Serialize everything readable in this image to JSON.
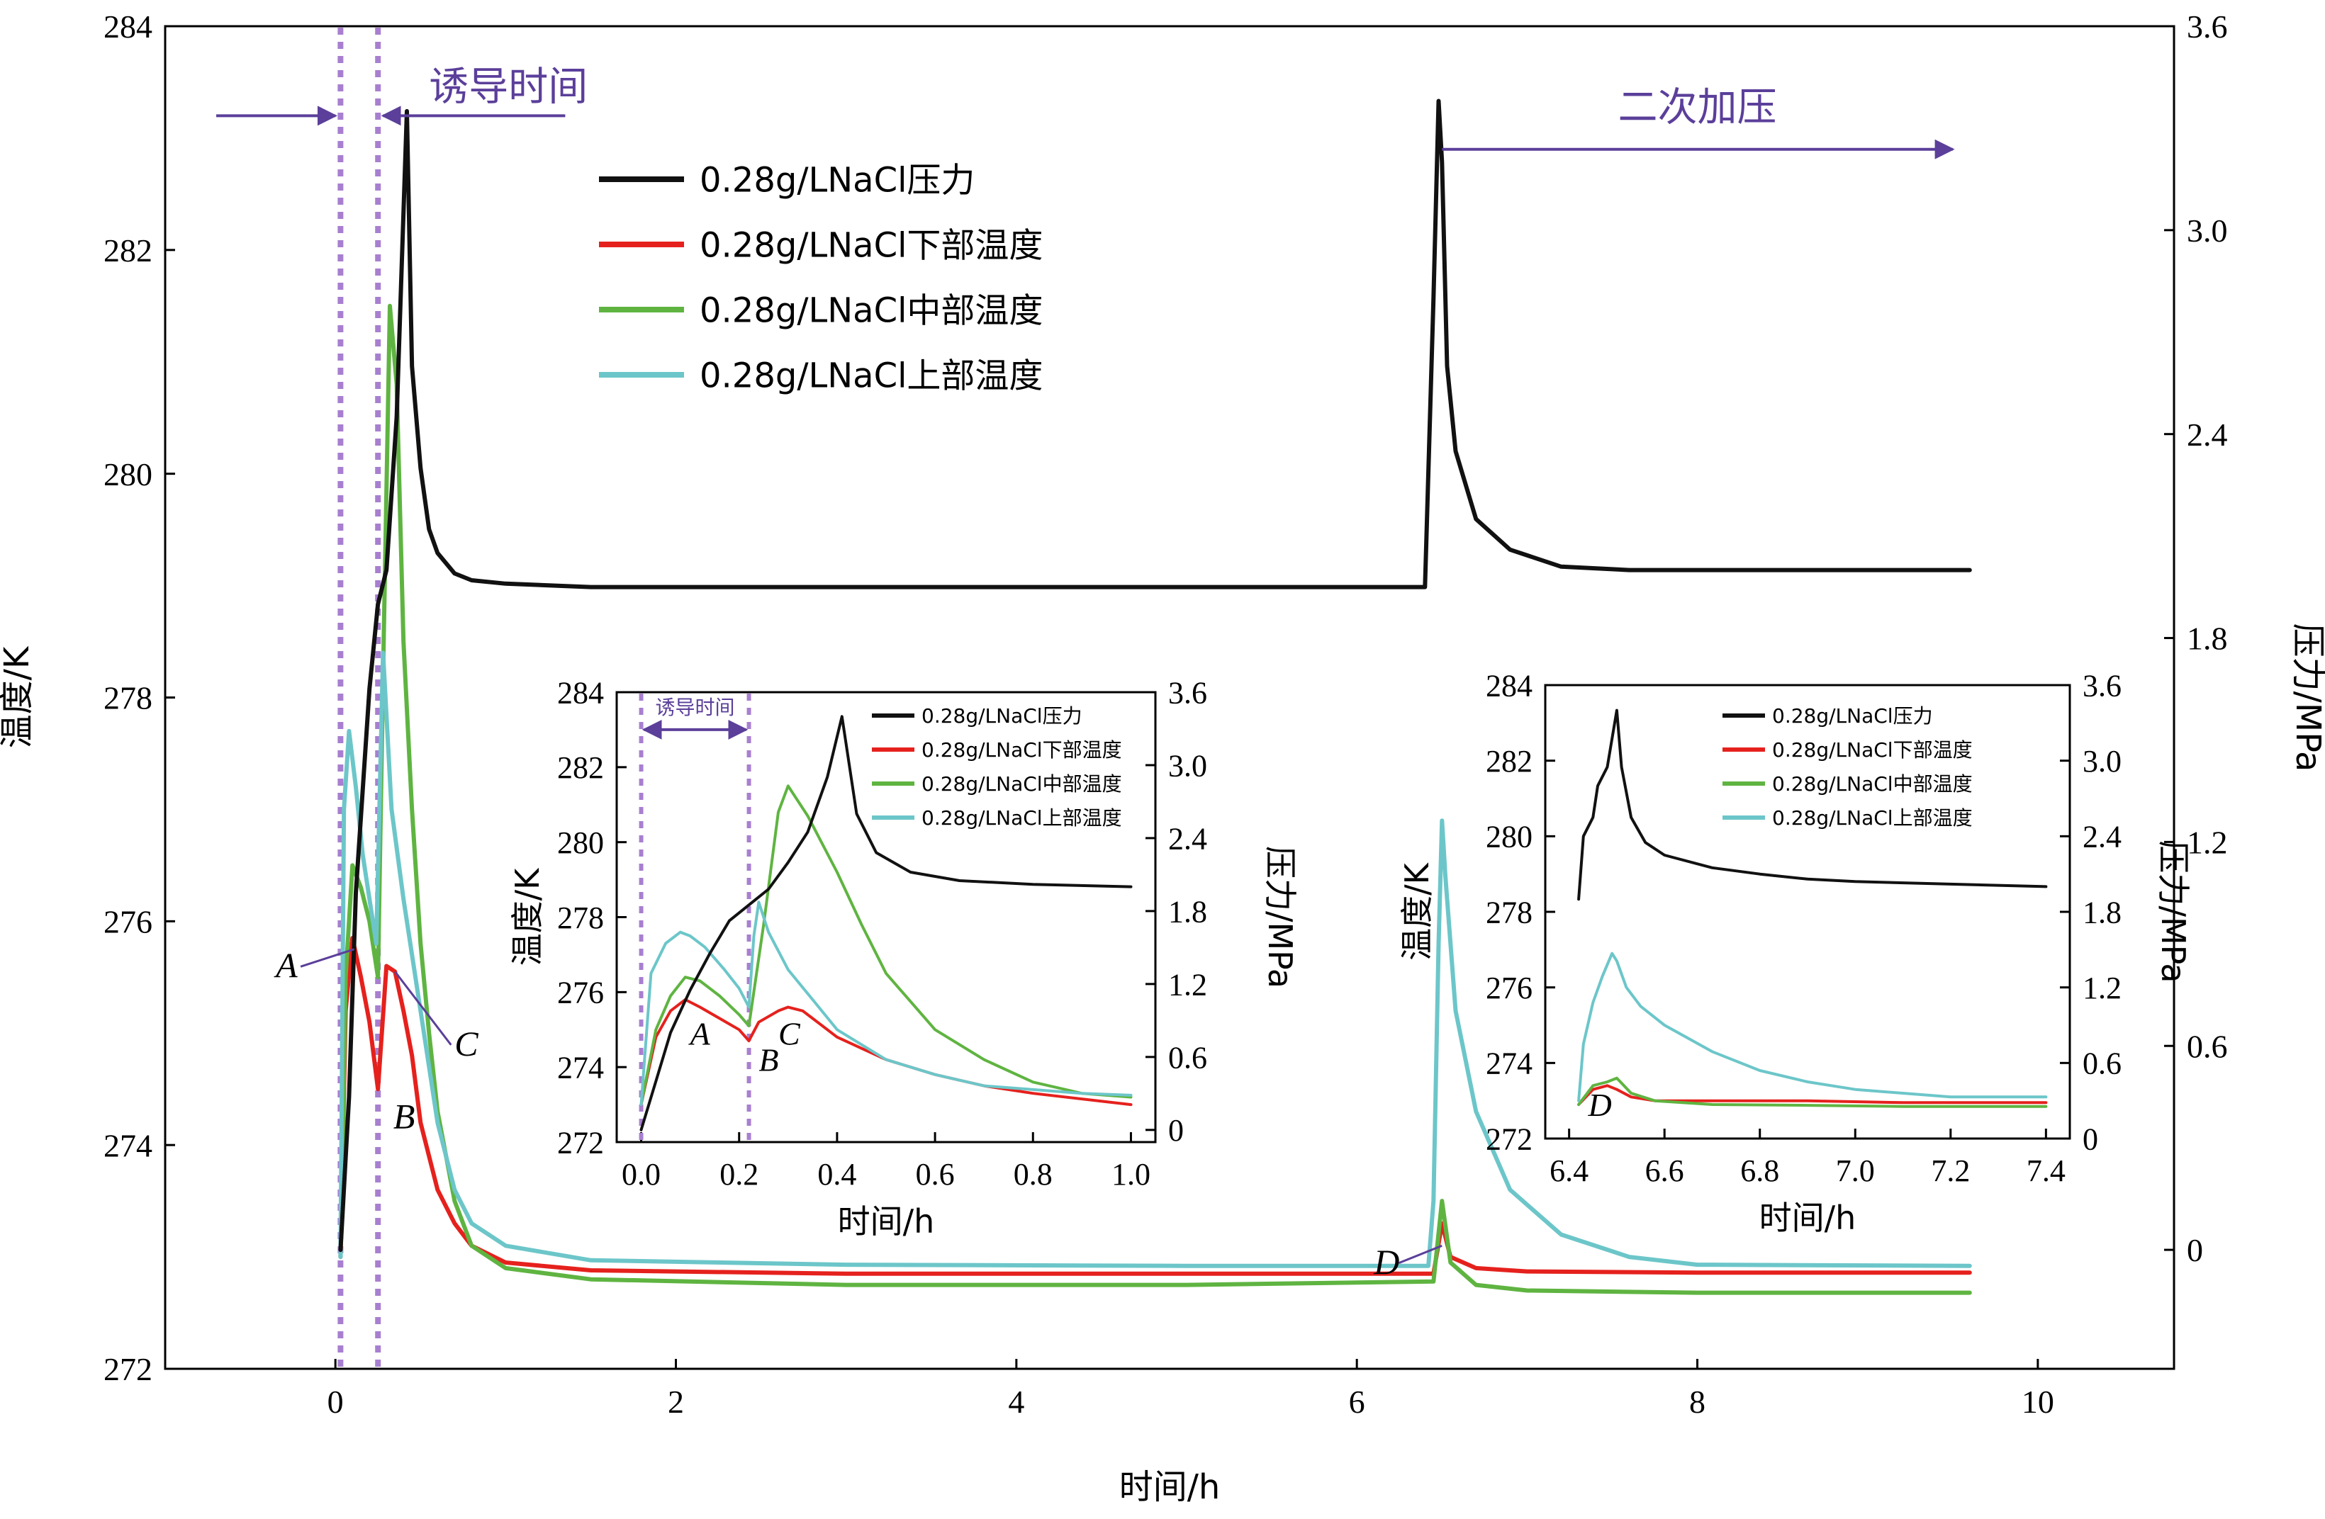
{
  "chart_data": [
    {
      "id": "main",
      "type": "line",
      "xlabel": "时间/h",
      "ylabel_left": "温度/K",
      "ylabel_right": "压力/MPa",
      "xlim": [
        -1,
        10.8
      ],
      "ylim_left": [
        272,
        284
      ],
      "ylim_right": [
        -0.35,
        3.6
      ],
      "x_ticks": [
        0,
        2,
        4,
        6,
        8,
        10
      ],
      "y_left_ticks": [
        272,
        274,
        276,
        278,
        280,
        282,
        284
      ],
      "y_right_ticks": [
        0,
        0.6,
        1.2,
        1.8,
        2.4,
        3.0,
        3.6
      ],
      "y_right_tick_labels": [
        "0",
        "0.6",
        "1.2",
        "1.8",
        "2.4",
        "3.0",
        "3.6"
      ],
      "legend_position": "top-center",
      "vlines": [
        0.03,
        0.25
      ],
      "annotations": [
        {
          "text": "诱导时间",
          "type": "double-arrow",
          "x_from": -0.7,
          "x_to": 1.35,
          "x_mid": 0.14,
          "y": 283.2
        },
        {
          "text": "二次加压",
          "type": "arrow",
          "x_from": 6.5,
          "x_to": 9.5,
          "y": 282.9
        },
        {
          "text": "A",
          "x": -0.35,
          "y": 275.5,
          "to_x": 0.11,
          "to_y": 275.75
        },
        {
          "text": "B",
          "x": 0.34,
          "y": 274.15
        },
        {
          "text": "C",
          "x": 0.7,
          "y": 274.8,
          "to_x": 0.35,
          "to_y": 275.55
        },
        {
          "text": "D",
          "x": 6.1,
          "y": 272.85,
          "to_x": 6.5,
          "to_y": 273.1
        }
      ],
      "series": [
        {
          "name": "0.28g/LNaCl压力",
          "axis": "right",
          "color": "#111111",
          "x": [
            0.03,
            0.08,
            0.12,
            0.2,
            0.25,
            0.3,
            0.36,
            0.42,
            0.45,
            0.5,
            0.55,
            0.6,
            0.7,
            0.8,
            1.0,
            1.5,
            2.5,
            3.5,
            4.5,
            5.5,
            6.4,
            6.45,
            6.48,
            6.5,
            6.53,
            6.58,
            6.7,
            6.9,
            7.2,
            7.6,
            8.5,
            9.6
          ],
          "values": [
            0.0,
            0.45,
            1.05,
            1.65,
            1.9,
            2.0,
            2.45,
            3.35,
            2.6,
            2.3,
            2.12,
            2.05,
            1.99,
            1.97,
            1.96,
            1.95,
            1.95,
            1.95,
            1.95,
            1.95,
            1.95,
            2.8,
            3.38,
            3.2,
            2.6,
            2.35,
            2.15,
            2.06,
            2.01,
            2.0,
            2.0,
            2.0
          ]
        },
        {
          "name": "0.28g/LNaCl下部温度",
          "axis": "left",
          "color": "#e5211d",
          "x": [
            0.03,
            0.06,
            0.1,
            0.15,
            0.2,
            0.25,
            0.3,
            0.35,
            0.4,
            0.45,
            0.5,
            0.6,
            0.7,
            0.8,
            1.0,
            1.5,
            3.0,
            5.0,
            6.45,
            6.5,
            6.55,
            6.7,
            7.0,
            8.0,
            9.6
          ],
          "values": [
            273.0,
            275.2,
            275.85,
            275.5,
            275.1,
            274.5,
            275.6,
            275.55,
            275.2,
            274.8,
            274.2,
            273.6,
            273.3,
            273.1,
            272.95,
            272.88,
            272.85,
            272.85,
            272.85,
            273.3,
            273.0,
            272.9,
            272.87,
            272.86,
            272.86
          ]
        },
        {
          "name": "0.28g/LNaCl中部温度",
          "axis": "left",
          "color": "#5fb441",
          "x": [
            0.03,
            0.06,
            0.1,
            0.15,
            0.2,
            0.25,
            0.28,
            0.32,
            0.36,
            0.4,
            0.45,
            0.5,
            0.55,
            0.6,
            0.7,
            0.8,
            1.0,
            1.5,
            3.0,
            5.0,
            6.45,
            6.5,
            6.55,
            6.7,
            7.0,
            8.0,
            9.6
          ],
          "values": [
            273.0,
            275.5,
            276.5,
            276.3,
            276.0,
            275.5,
            278.2,
            281.5,
            280.8,
            278.5,
            277.0,
            275.8,
            275.0,
            274.3,
            273.5,
            273.1,
            272.9,
            272.8,
            272.75,
            272.75,
            272.78,
            273.5,
            272.95,
            272.75,
            272.7,
            272.68,
            272.68
          ]
        },
        {
          "name": "0.28g/LNaCl上部温度",
          "axis": "left",
          "color": "#6cc6c9",
          "x": [
            0.03,
            0.05,
            0.08,
            0.12,
            0.16,
            0.2,
            0.24,
            0.28,
            0.33,
            0.4,
            0.5,
            0.6,
            0.7,
            0.8,
            1.0,
            1.5,
            3.0,
            5.0,
            6.42,
            6.45,
            6.48,
            6.5,
            6.52,
            6.58,
            6.7,
            6.9,
            7.2,
            7.6,
            8.0,
            9.6
          ],
          "values": [
            273.0,
            277.0,
            277.7,
            277.2,
            276.6,
            276.2,
            275.8,
            278.4,
            277.0,
            276.2,
            275.2,
            274.2,
            273.6,
            273.3,
            273.1,
            272.97,
            272.93,
            272.92,
            272.92,
            273.5,
            275.8,
            276.9,
            276.4,
            275.2,
            274.3,
            273.6,
            273.2,
            273.0,
            272.93,
            272.92
          ]
        }
      ]
    },
    {
      "id": "inset1",
      "type": "line",
      "xlabel": "时间/h",
      "ylabel_left": "温度/K",
      "ylabel_right": "压力/MPa",
      "xlim": [
        -0.05,
        1.05
      ],
      "ylim_left": [
        272,
        284
      ],
      "ylim_right": [
        -0.1,
        3.6
      ],
      "x_ticks": [
        0.0,
        0.2,
        0.4,
        0.6,
        0.8,
        1.0
      ],
      "x_tick_labels": [
        "0.0",
        "0.2",
        "0.4",
        "0.6",
        "0.8",
        "1.0"
      ],
      "y_left_ticks": [
        272,
        274,
        276,
        278,
        280,
        282,
        284
      ],
      "y_right_ticks": [
        0,
        0.6,
        1.2,
        1.8,
        2.4,
        3.0,
        3.6
      ],
      "y_right_tick_labels": [
        "0",
        "0.6",
        "1.2",
        "1.8",
        "2.4",
        "3.0",
        "3.6"
      ],
      "legend_position": "top-right",
      "vlines": [
        0.0,
        0.22
      ],
      "annotations": [
        {
          "text": "诱导时间",
          "type": "double-arrow",
          "x_from": 0.0,
          "x_to": 0.22,
          "y": 283.0
        },
        {
          "text": "A",
          "x": 0.1,
          "y": 274.6
        },
        {
          "text": "B",
          "x": 0.24,
          "y": 273.9
        },
        {
          "text": "C",
          "x": 0.28,
          "y": 274.6
        }
      ],
      "series": [
        {
          "name": "0.28g/LNaCl压力",
          "axis": "right",
          "color": "#111111",
          "x": [
            0.0,
            0.03,
            0.06,
            0.1,
            0.14,
            0.18,
            0.22,
            0.26,
            0.3,
            0.34,
            0.38,
            0.41,
            0.44,
            0.48,
            0.55,
            0.65,
            0.8,
            1.0
          ],
          "values": [
            0.0,
            0.4,
            0.8,
            1.15,
            1.45,
            1.72,
            1.85,
            1.98,
            2.2,
            2.45,
            2.9,
            3.4,
            2.6,
            2.28,
            2.12,
            2.05,
            2.02,
            2.0
          ]
        },
        {
          "name": "0.28g/LNaCl下部温度",
          "axis": "left",
          "color": "#e5211d",
          "x": [
            0.0,
            0.03,
            0.06,
            0.09,
            0.12,
            0.16,
            0.2,
            0.22,
            0.24,
            0.28,
            0.3,
            0.33,
            0.36,
            0.4,
            0.5,
            0.6,
            0.7,
            0.8,
            1.0
          ],
          "values": [
            273.0,
            274.8,
            275.5,
            275.8,
            275.6,
            275.3,
            275.0,
            274.7,
            275.2,
            275.5,
            275.6,
            275.5,
            275.2,
            274.8,
            274.2,
            273.8,
            273.5,
            273.3,
            273.0
          ]
        },
        {
          "name": "0.28g/LNaCl中部温度",
          "axis": "left",
          "color": "#5fb441",
          "x": [
            0.0,
            0.03,
            0.06,
            0.09,
            0.12,
            0.16,
            0.2,
            0.22,
            0.25,
            0.28,
            0.3,
            0.34,
            0.4,
            0.45,
            0.5,
            0.6,
            0.7,
            0.8,
            0.9,
            1.0
          ],
          "values": [
            273.0,
            275.0,
            275.9,
            276.4,
            276.3,
            275.9,
            275.4,
            275.1,
            277.8,
            280.8,
            281.5,
            280.7,
            279.2,
            277.8,
            276.5,
            275.0,
            274.2,
            273.6,
            273.3,
            273.2
          ]
        },
        {
          "name": "0.28g/LNaCl上部温度",
          "axis": "left",
          "color": "#6cc6c9",
          "x": [
            0.0,
            0.02,
            0.05,
            0.08,
            0.1,
            0.13,
            0.17,
            0.2,
            0.22,
            0.23,
            0.24,
            0.26,
            0.3,
            0.35,
            0.4,
            0.5,
            0.6,
            0.7,
            0.8,
            0.9,
            1.0
          ],
          "values": [
            273.0,
            276.5,
            277.3,
            277.6,
            277.5,
            277.2,
            276.6,
            276.1,
            275.6,
            277.5,
            278.4,
            277.6,
            276.6,
            275.8,
            275.0,
            274.2,
            273.8,
            273.5,
            273.4,
            273.3,
            273.25
          ]
        }
      ]
    },
    {
      "id": "inset2",
      "type": "line",
      "xlabel": "时间/h",
      "ylabel_left": "温度/K",
      "ylabel_right": "压力/MPa",
      "xlim": [
        6.35,
        7.45
      ],
      "ylim_left": [
        272,
        284
      ],
      "ylim_right": [
        0,
        3.6
      ],
      "x_ticks": [
        6.4,
        6.6,
        6.8,
        7.0,
        7.2,
        7.4
      ],
      "x_tick_labels": [
        "6.4",
        "6.6",
        "6.8",
        "7.0",
        "7.2",
        "7.4"
      ],
      "y_left_ticks": [
        272,
        274,
        276,
        278,
        280,
        282,
        284
      ],
      "y_right_ticks": [
        0,
        0.6,
        1.2,
        1.8,
        2.4,
        3.0,
        3.6
      ],
      "y_right_tick_labels": [
        "0",
        "0.6",
        "1.2",
        "1.8",
        "2.4",
        "3.0",
        "3.6"
      ],
      "legend_position": "top-right",
      "annotations": [
        {
          "text": "D",
          "x": 6.44,
          "y": 272.6
        }
      ],
      "series": [
        {
          "name": "0.28g/LNaCl压力",
          "axis": "right",
          "color": "#111111",
          "x": [
            6.42,
            6.43,
            6.45,
            6.46,
            6.48,
            6.5,
            6.51,
            6.53,
            6.56,
            6.6,
            6.7,
            6.8,
            6.9,
            7.0,
            7.2,
            7.4
          ],
          "values": [
            1.9,
            2.4,
            2.55,
            2.8,
            2.95,
            3.4,
            2.95,
            2.55,
            2.35,
            2.25,
            2.15,
            2.1,
            2.06,
            2.04,
            2.02,
            2.0
          ]
        },
        {
          "name": "0.28g/LNaCl下部温度",
          "axis": "left",
          "color": "#e5211d",
          "x": [
            6.42,
            6.45,
            6.48,
            6.5,
            6.53,
            6.58,
            6.7,
            6.9,
            7.1,
            7.4
          ],
          "values": [
            272.9,
            273.3,
            273.4,
            273.3,
            273.1,
            273.0,
            273.0,
            273.0,
            272.95,
            272.95
          ]
        },
        {
          "name": "0.28g/LNaCl中部温度",
          "axis": "left",
          "color": "#5fb441",
          "x": [
            6.42,
            6.45,
            6.48,
            6.5,
            6.53,
            6.58,
            6.7,
            6.9,
            7.1,
            7.4
          ],
          "values": [
            272.9,
            273.4,
            273.5,
            273.6,
            273.2,
            273.0,
            272.9,
            272.88,
            272.85,
            272.85
          ]
        },
        {
          "name": "0.28g/LNaCl上部温度",
          "axis": "left",
          "color": "#6cc6c9",
          "x": [
            6.42,
            6.43,
            6.45,
            6.47,
            6.49,
            6.5,
            6.52,
            6.55,
            6.6,
            6.7,
            6.8,
            6.9,
            7.0,
            7.1,
            7.2,
            7.4
          ],
          "values": [
            273.0,
            274.5,
            275.6,
            276.3,
            276.9,
            276.7,
            276.0,
            275.5,
            275.0,
            274.3,
            273.8,
            273.5,
            273.3,
            273.2,
            273.1,
            273.1
          ]
        }
      ]
    }
  ]
}
